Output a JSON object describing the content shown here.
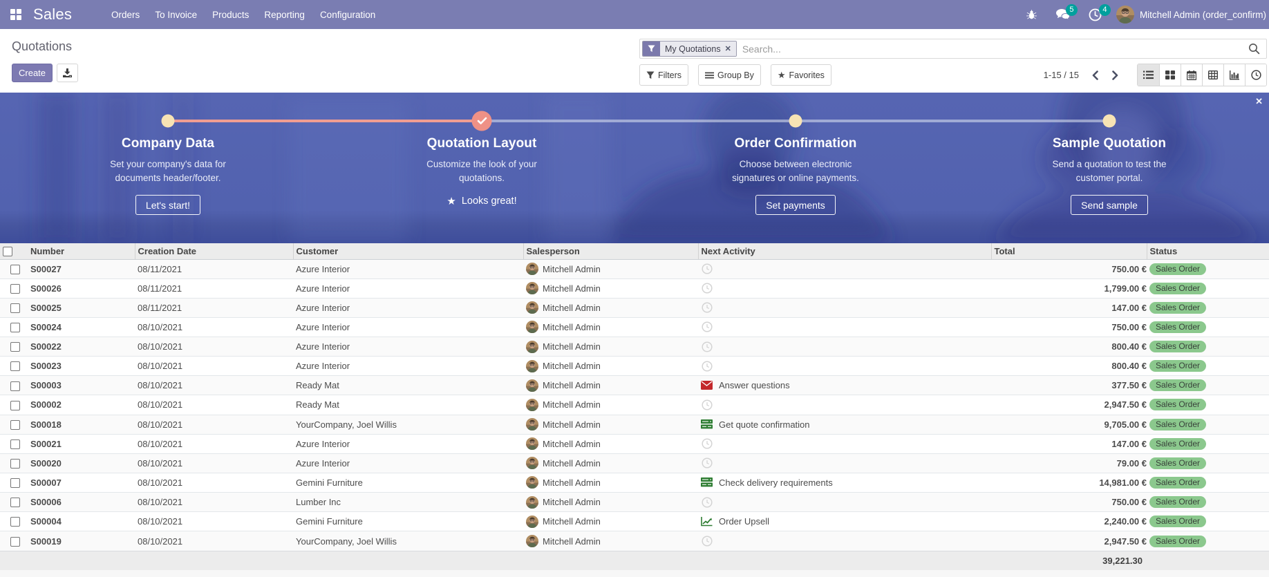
{
  "navbar": {
    "brand": "Sales",
    "menus": [
      "Orders",
      "To Invoice",
      "Products",
      "Reporting",
      "Configuration"
    ],
    "messages_count": "5",
    "activities_count": "4",
    "user_name": "Mitchell Admin (order_confirm)"
  },
  "control_panel": {
    "title": "Quotations",
    "create_label": "Create",
    "search": {
      "facet": "My Quotations",
      "placeholder": "Search..."
    },
    "filters_label": "Filters",
    "groupby_label": "Group By",
    "favorites_label": "Favorites",
    "pager": "1-15 / 15"
  },
  "icons": {
    "star": "★",
    "close": "✕",
    "facet_remove": "✕"
  },
  "colors": {
    "brand_purple": "#7a7db2",
    "badge_teal": "#00a09d",
    "banner_blue": "#5262af",
    "step_salmon": "#ef9186",
    "step_cream": "#f7e3b4",
    "status_green": "#8bc88d"
  },
  "banner": {
    "steps": [
      {
        "title": "Company Data",
        "desc": "Set your company's data for documents header/footer.",
        "button": "Let's start!",
        "state": "todo"
      },
      {
        "title": "Quotation Layout",
        "desc": "Customize the look of your quotations.",
        "button": "Looks great!",
        "state": "done"
      },
      {
        "title": "Order Confirmation",
        "desc": "Choose between electronic signatures or online payments.",
        "button": "Set payments",
        "state": "todo"
      },
      {
        "title": "Sample Quotation",
        "desc": "Send a quotation to test the customer portal.",
        "button": "Send sample",
        "state": "todo"
      }
    ]
  },
  "table": {
    "columns": [
      "Number",
      "Creation Date",
      "Customer",
      "Salesperson",
      "Next Activity",
      "Total",
      "Status"
    ],
    "rows": [
      {
        "number": "S00027",
        "date": "08/11/2021",
        "customer": "Azure Interior",
        "salesperson": "Mitchell Admin",
        "activity_icon": "clock",
        "activity": "",
        "total": "750.00 €",
        "status": "Sales Order"
      },
      {
        "number": "S00026",
        "date": "08/11/2021",
        "customer": "Azure Interior",
        "salesperson": "Mitchell Admin",
        "activity_icon": "clock",
        "activity": "",
        "total": "1,799.00 €",
        "status": "Sales Order"
      },
      {
        "number": "S00025",
        "date": "08/11/2021",
        "customer": "Azure Interior",
        "salesperson": "Mitchell Admin",
        "activity_icon": "clock",
        "activity": "",
        "total": "147.00 €",
        "status": "Sales Order"
      },
      {
        "number": "S00024",
        "date": "08/10/2021",
        "customer": "Azure Interior",
        "salesperson": "Mitchell Admin",
        "activity_icon": "clock",
        "activity": "",
        "total": "750.00 €",
        "status": "Sales Order"
      },
      {
        "number": "S00022",
        "date": "08/10/2021",
        "customer": "Azure Interior",
        "salesperson": "Mitchell Admin",
        "activity_icon": "clock",
        "activity": "",
        "total": "800.40 €",
        "status": "Sales Order"
      },
      {
        "number": "S00023",
        "date": "08/10/2021",
        "customer": "Azure Interior",
        "salesperson": "Mitchell Admin",
        "activity_icon": "clock",
        "activity": "",
        "total": "800.40 €",
        "status": "Sales Order"
      },
      {
        "number": "S00003",
        "date": "08/10/2021",
        "customer": "Ready Mat",
        "salesperson": "Mitchell Admin",
        "activity_icon": "envelope",
        "activity": "Answer questions",
        "total": "377.50 €",
        "status": "Sales Order"
      },
      {
        "number": "S00002",
        "date": "08/10/2021",
        "customer": "Ready Mat",
        "salesperson": "Mitchell Admin",
        "activity_icon": "clock",
        "activity": "",
        "total": "2,947.50 €",
        "status": "Sales Order"
      },
      {
        "number": "S00018",
        "date": "08/10/2021",
        "customer": "YourCompany, Joel Willis",
        "salesperson": "Mitchell Admin",
        "activity_icon": "money",
        "activity": "Get quote confirmation",
        "total": "9,705.00 €",
        "status": "Sales Order"
      },
      {
        "number": "S00021",
        "date": "08/10/2021",
        "customer": "Azure Interior",
        "salesperson": "Mitchell Admin",
        "activity_icon": "clock",
        "activity": "",
        "total": "147.00 €",
        "status": "Sales Order"
      },
      {
        "number": "S00020",
        "date": "08/10/2021",
        "customer": "Azure Interior",
        "salesperson": "Mitchell Admin",
        "activity_icon": "clock",
        "activity": "",
        "total": "79.00 €",
        "status": "Sales Order"
      },
      {
        "number": "S00007",
        "date": "08/10/2021",
        "customer": "Gemini Furniture",
        "salesperson": "Mitchell Admin",
        "activity_icon": "money",
        "activity": "Check delivery requirements",
        "total": "14,981.00 €",
        "status": "Sales Order"
      },
      {
        "number": "S00006",
        "date": "08/10/2021",
        "customer": "Lumber Inc",
        "salesperson": "Mitchell Admin",
        "activity_icon": "clock",
        "activity": "",
        "total": "750.00 €",
        "status": "Sales Order"
      },
      {
        "number": "S00004",
        "date": "08/10/2021",
        "customer": "Gemini Furniture",
        "salesperson": "Mitchell Admin",
        "activity_icon": "chart",
        "activity": "Order Upsell",
        "total": "2,240.00 €",
        "status": "Sales Order"
      },
      {
        "number": "S00019",
        "date": "08/10/2021",
        "customer": "YourCompany, Joel Willis",
        "salesperson": "Mitchell Admin",
        "activity_icon": "clock",
        "activity": "",
        "total": "2,947.50 €",
        "status": "Sales Order"
      }
    ],
    "footer_total": "39,221.30"
  }
}
